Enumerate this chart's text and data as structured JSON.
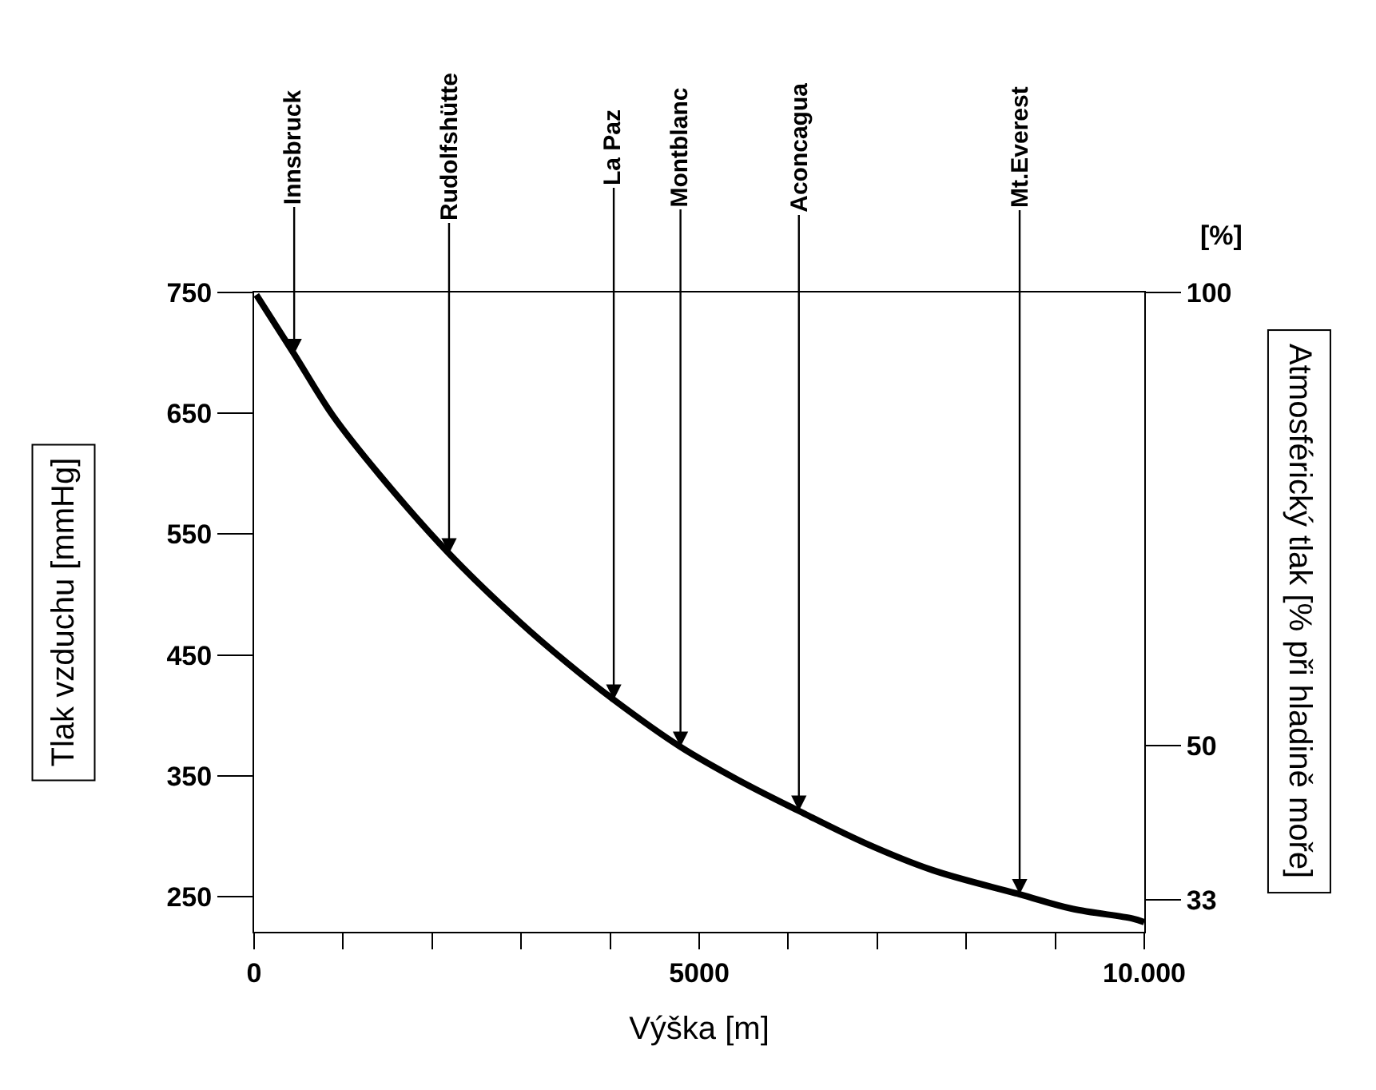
{
  "chart_data": {
    "type": "line",
    "xlabel": "Výška [m]",
    "ylabel": "Tlak vzduchu [mmHg]",
    "y2label": "Atmosférický tlak [% při hladině moře]",
    "series": [
      {
        "color": "#000000",
        "x": [
          25,
          450,
          886,
          1410,
          2190,
          2989,
          3508,
          4040,
          4790,
          5453,
          6120,
          6875,
          7622,
          8600,
          9192,
          9865,
          10000
        ],
        "values": [
          748,
          699,
          648,
          599,
          534,
          477,
          444,
          413,
          374,
          346,
          321,
          294,
          272,
          252,
          240,
          232,
          229
        ]
      }
    ],
    "xlim": [
      0,
      10000
    ],
    "xticks": [
      0,
      {
        "value": 1000,
        "label": null
      },
      {
        "value": 2000,
        "label": null
      },
      {
        "value": 3000,
        "label": null
      },
      {
        "value": 4000,
        "label": null
      },
      5000,
      {
        "value": 6000,
        "label": null
      },
      {
        "value": 7000,
        "label": null
      },
      {
        "value": 8000,
        "label": null
      },
      {
        "value": 9000,
        "label": null
      },
      {
        "value": 10000,
        "label": "10.000"
      }
    ],
    "ylim": [
      221,
      750
    ],
    "yticks": [
      250,
      350,
      450,
      550,
      650,
      750
    ],
    "y2lim": [
      29.5,
      100
    ],
    "y2ticks": [
      33,
      50,
      100
    ],
    "annotations": [
      {
        "text": "Innsbruck",
        "x": 450,
        "y": 699
      },
      {
        "text": "Rudolfshütte",
        "x": 2190,
        "y": 534
      },
      {
        "text": "La Paz",
        "x": 4040,
        "y": 413
      },
      {
        "text": "Montblanc",
        "x": 4790,
        "y": 374
      },
      {
        "text": "Aconcagua",
        "x": 6120,
        "y": 321
      },
      {
        "text": "Mt.Everest",
        "x": 8600,
        "y": 252
      },
      "[%]"
    ]
  }
}
